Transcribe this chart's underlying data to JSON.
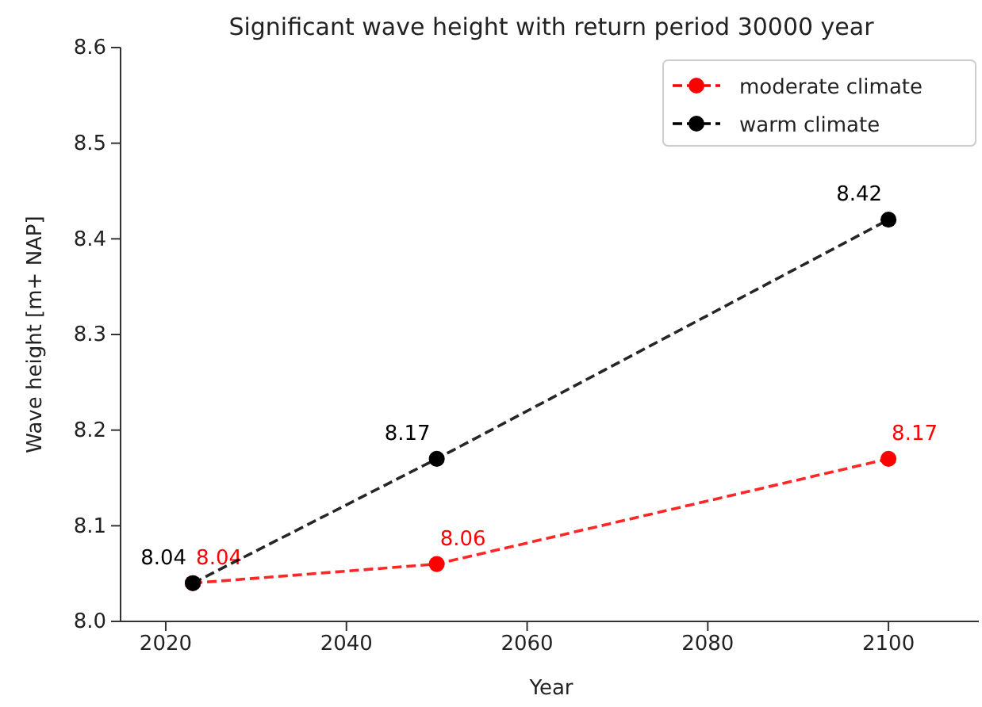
{
  "chart_data": {
    "type": "line",
    "title": "Significant wave height with return period 30000 year",
    "xlabel": "Year",
    "ylabel": "Wave height [m+ NAP]",
    "x": [
      2023,
      2050,
      2100
    ],
    "series": [
      {
        "name": "moderate climate",
        "color": "#ff0000",
        "values": [
          8.04,
          8.06,
          8.17
        ]
      },
      {
        "name": "warm climate",
        "color": "#000000",
        "values": [
          8.04,
          8.17,
          8.42
        ]
      }
    ],
    "xlim": [
      2015,
      2110
    ],
    "xticks": [
      2020,
      2040,
      2060,
      2080,
      2100
    ],
    "ylim": [
      8.0,
      8.6
    ],
    "yticks": [
      {
        "value": 8.0,
        "label": "8.0"
      },
      8.1,
      8.2,
      8.3,
      8.4,
      8.5,
      8.6
    ],
    "data_labels": true,
    "legend": "top right",
    "marker": "circle",
    "line_style": "dashed",
    "grid": false
  }
}
